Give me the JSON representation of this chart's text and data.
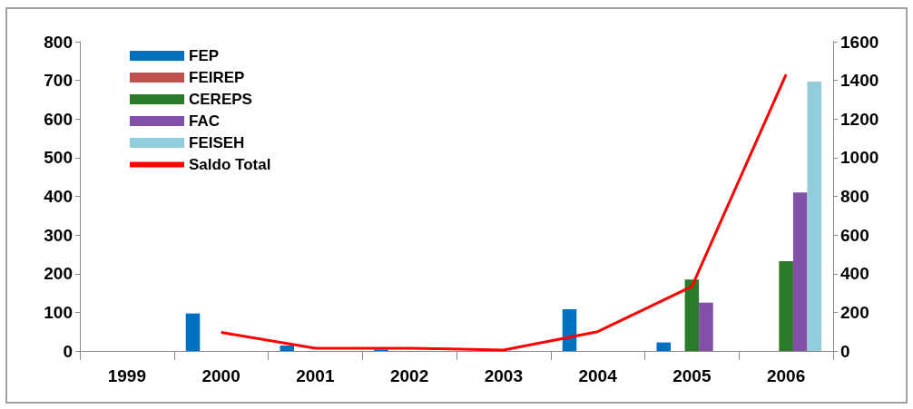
{
  "chart_data": {
    "type": "bar",
    "categories": [
      "1999",
      "2000",
      "2001",
      "2002",
      "2003",
      "2004",
      "2005",
      "2006"
    ],
    "series": [
      {
        "name": "FEP",
        "color": "#0070c0",
        "values": [
          null,
          97,
          14,
          4,
          null,
          108,
          22,
          null
        ]
      },
      {
        "name": "FEIREP",
        "color": "#c0504d",
        "values": [
          null,
          null,
          null,
          null,
          null,
          null,
          null,
          null
        ]
      },
      {
        "name": "CEREPS",
        "color": "#2a7a2a",
        "values": [
          null,
          null,
          null,
          null,
          null,
          null,
          185,
          232
        ]
      },
      {
        "name": "FAC",
        "color": "#8350a8",
        "values": [
          null,
          null,
          null,
          null,
          null,
          null,
          125,
          410
        ]
      },
      {
        "name": "FEISEH",
        "color": "#92cddc",
        "values": [
          null,
          null,
          null,
          null,
          null,
          null,
          null,
          697
        ]
      },
      {
        "name": "Saldo Total",
        "type": "line",
        "axis": "y2",
        "color": "#ff0000",
        "values": [
          null,
          96,
          14,
          14,
          5,
          100,
          334,
          1430
        ]
      }
    ],
    "ylim": [
      0,
      800
    ],
    "yticks": [
      0,
      100,
      200,
      300,
      400,
      500,
      600,
      700,
      800
    ],
    "y2lim": [
      0,
      1600
    ],
    "y2ticks": [
      0,
      200,
      400,
      600,
      800,
      1000,
      1200,
      1400,
      1600
    ],
    "grid": false,
    "legend": "top left",
    "marker": "none"
  }
}
